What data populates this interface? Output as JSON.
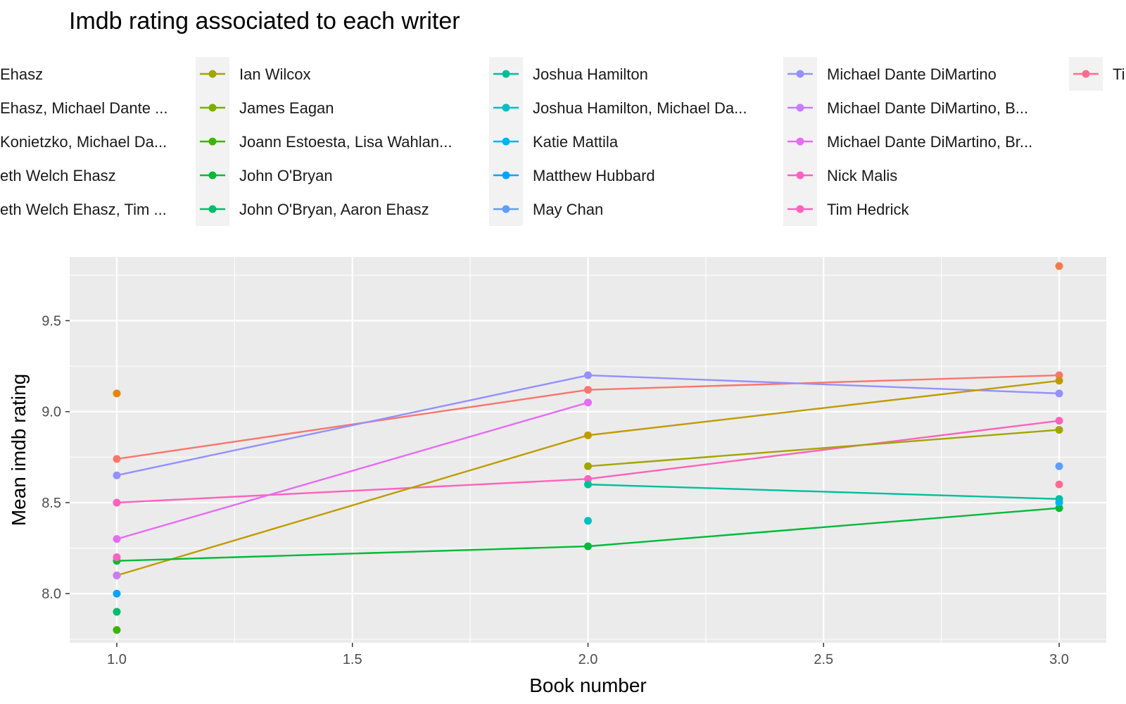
{
  "chart_data": {
    "type": "line",
    "title": "Imdb rating associated to each writer",
    "xlabel": "Book number",
    "ylabel": "Mean imdb rating",
    "xlim": [
      0.9,
      3.1
    ],
    "ylim": [
      7.73,
      9.85
    ],
    "x_ticks": [
      1.0,
      1.5,
      2.0,
      2.5,
      3.0
    ],
    "x_tick_labels": [
      "1.0",
      "1.5",
      "2.0",
      "2.5",
      "3.0"
    ],
    "y_ticks": [
      8.0,
      8.5,
      9.0,
      9.5
    ],
    "y_tick_labels": [
      "8.0",
      "8.5",
      "9.0",
      "9.5"
    ],
    "grid": true,
    "legend_position": "top",
    "legend": [
      {
        "label": "Ehasz",
        "color": "#F8766D"
      },
      {
        "label": "Ehasz, Michael Dante ...",
        "color": "#F17C4A"
      },
      {
        "label": "Konietzko, Michael Da...",
        "color": "#E58700"
      },
      {
        "label": "eth Welch Ehasz",
        "color": "#D59200"
      },
      {
        "label": "eth Welch Ehasz, Tim ...",
        "color": "#C09B00"
      },
      {
        "label": "Ian Wilcox",
        "color": "#A3A500"
      },
      {
        "label": "James Eagan",
        "color": "#7CAE00"
      },
      {
        "label": "Joann Estoesta, Lisa Wahlan...",
        "color": "#39B600"
      },
      {
        "label": "John O'Bryan",
        "color": "#00BA38"
      },
      {
        "label": "John O'Bryan, Aaron Ehasz",
        "color": "#00BE6C"
      },
      {
        "label": "Joshua Hamilton",
        "color": "#00BF9B"
      },
      {
        "label": "Joshua Hamilton, Michael Da...",
        "color": "#00BFC4"
      },
      {
        "label": "Katie Mattila",
        "color": "#00B4EF"
      },
      {
        "label": "Matthew Hubbard",
        "color": "#00A5FF"
      },
      {
        "label": "May Chan",
        "color": "#619CFF"
      },
      {
        "label": "Michael Dante DiMartino",
        "color": "#9590FF"
      },
      {
        "label": "Michael Dante DiMartino, B...",
        "color": "#C77CFF"
      },
      {
        "label": "Michael Dante DiMartino, Br...",
        "color": "#E76BF3"
      },
      {
        "label": "Nick Malis",
        "color": "#FF61C3"
      },
      {
        "label": "Tim Hedrick",
        "color": "#FF62BC"
      },
      {
        "label": "Ti",
        "color": "#FF6C91"
      }
    ],
    "series": [
      {
        "color": "#F8766D",
        "x": [
          1,
          2,
          3
        ],
        "y": [
          8.74,
          9.12,
          9.2
        ]
      },
      {
        "color": "#9590FF",
        "x": [
          1,
          2,
          3
        ],
        "y": [
          8.65,
          9.2,
          9.1
        ]
      },
      {
        "color": "#FF62BC",
        "x": [
          1,
          2,
          3
        ],
        "y": [
          8.5,
          8.63,
          8.95
        ]
      },
      {
        "color": "#E76BF3",
        "x": [
          1,
          2
        ],
        "y": [
          8.3,
          9.05
        ]
      },
      {
        "color": "#C09B00",
        "x": [
          1,
          2,
          3
        ],
        "y": [
          8.1,
          8.87,
          9.17
        ]
      },
      {
        "color": "#A3A500",
        "x": [
          2,
          3
        ],
        "y": [
          8.7,
          8.9
        ]
      },
      {
        "color": "#00BA38",
        "x": [
          1,
          2,
          3
        ],
        "y": [
          8.18,
          8.26,
          8.47
        ]
      },
      {
        "color": "#00BF9B",
        "x": [
          2,
          3
        ],
        "y": [
          8.6,
          8.52
        ]
      }
    ],
    "points": [
      {
        "x": 1,
        "y": 9.1,
        "color": "#E58700"
      },
      {
        "x": 1,
        "y": 8.2,
        "color": "#FF61C3"
      },
      {
        "x": 1,
        "y": 8.1,
        "color": "#C77CFF"
      },
      {
        "x": 1,
        "y": 8.0,
        "color": "#00A5FF"
      },
      {
        "x": 1,
        "y": 7.9,
        "color": "#00BE6C"
      },
      {
        "x": 1,
        "y": 7.8,
        "color": "#39B600"
      },
      {
        "x": 2,
        "y": 8.4,
        "color": "#00BFC4"
      },
      {
        "x": 3,
        "y": 9.8,
        "color": "#F17C4A"
      },
      {
        "x": 3,
        "y": 8.7,
        "color": "#619CFF"
      },
      {
        "x": 3,
        "y": 8.6,
        "color": "#FF6C91"
      },
      {
        "x": 3,
        "y": 8.5,
        "color": "#00B4EF"
      }
    ]
  }
}
